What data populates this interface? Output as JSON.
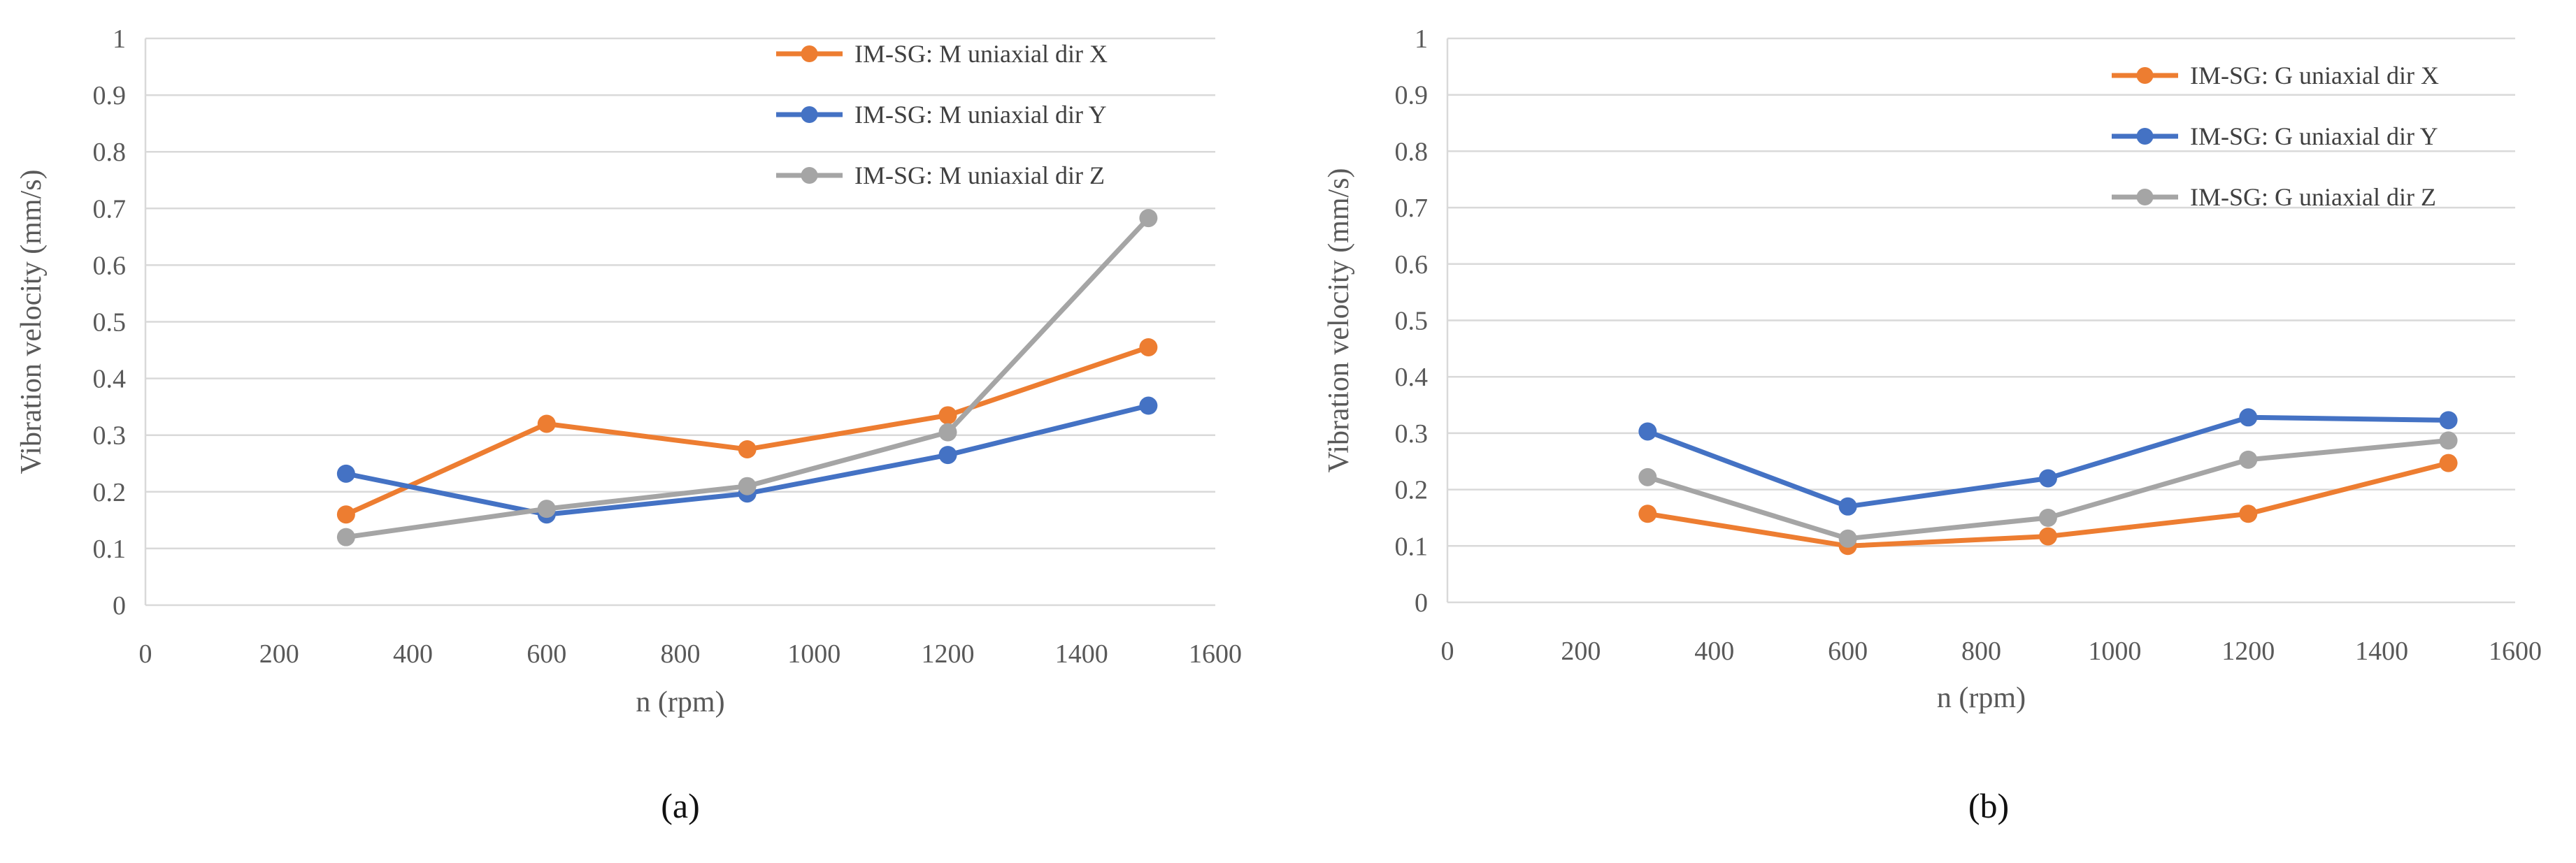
{
  "chart_data": [
    {
      "type": "line",
      "panel_label": "(a)",
      "xlabel": "n (rpm)",
      "ylabel": "Vibration velocity (mm/s)",
      "xlim": [
        0,
        1600
      ],
      "ylim": [
        0,
        1
      ],
      "x_ticks": [
        "0",
        "200",
        "400",
        "600",
        "800",
        "1000",
        "1200",
        "1400",
        "1600"
      ],
      "y_ticks": [
        "0",
        "0.1",
        "0.2",
        "0.3",
        "0.4",
        "0.5",
        "0.6",
        "0.7",
        "0.8",
        "0.9",
        "1"
      ],
      "grid": "horizontal",
      "legend_position": "top-right",
      "x": [
        300,
        600,
        900,
        1200,
        1500
      ],
      "series": [
        {
          "name": "IM-SG: M uniaxial dir X",
          "color": "#ed7d31",
          "values": [
            0.16,
            0.32,
            0.275,
            0.335,
            0.455
          ]
        },
        {
          "name": "IM-SG: M uniaxial dir Y",
          "color": "#4472c4",
          "values": [
            0.232,
            0.16,
            0.197,
            0.265,
            0.352
          ]
        },
        {
          "name": "IM-SG: M uniaxial dir Z",
          "color": "#a5a5a5",
          "values": [
            0.12,
            0.17,
            0.21,
            0.305,
            0.683
          ]
        }
      ]
    },
    {
      "type": "line",
      "panel_label": "(b)",
      "xlabel": "n (rpm)",
      "ylabel": "Vibration velocity (mm/s)",
      "xlim": [
        0,
        1600
      ],
      "ylim": [
        0,
        1
      ],
      "x_ticks": [
        "0",
        "200",
        "400",
        "600",
        "800",
        "1000",
        "1200",
        "1400",
        "1600"
      ],
      "y_ticks": [
        "0",
        "0.1",
        "0.2",
        "0.3",
        "0.4",
        "0.5",
        "0.6",
        "0.7",
        "0.8",
        "0.9",
        "1"
      ],
      "grid": "horizontal",
      "legend_position": "top-right",
      "x": [
        300,
        600,
        900,
        1200,
        1500
      ],
      "series": [
        {
          "name": "IM-SG: G uniaxial dir X",
          "color": "#ed7d31",
          "values": [
            0.157,
            0.1,
            0.117,
            0.157,
            0.247
          ]
        },
        {
          "name": "IM-SG: G uniaxial dir Y",
          "color": "#4472c4",
          "values": [
            0.303,
            0.17,
            0.22,
            0.328,
            0.323
          ]
        },
        {
          "name": "IM-SG: G uniaxial dir Z",
          "color": "#a5a5a5",
          "values": [
            0.222,
            0.113,
            0.15,
            0.253,
            0.287
          ]
        }
      ]
    }
  ]
}
